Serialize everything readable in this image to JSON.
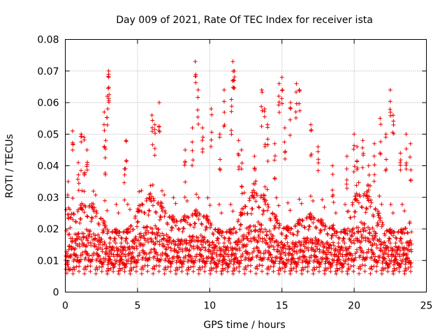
{
  "chart_data": {
    "type": "scatter",
    "title": "Day 009 of 2021, Rate Of TEC Index for receiver ista",
    "xlabel": "GPS time / hours",
    "ylabel": "ROTI / TECUs",
    "xlim": [
      0,
      25
    ],
    "ylim": [
      0,
      0.08
    ],
    "grid": true,
    "x_ticks": [
      0,
      5,
      10,
      15,
      20,
      25
    ],
    "x_tick_labels": [
      "0",
      "5",
      "10",
      "15",
      "20",
      "25"
    ],
    "y_ticks": [
      0,
      0.01,
      0.02,
      0.03,
      0.04,
      0.05,
      0.06,
      0.07,
      0.08
    ],
    "y_tick_labels": [
      "0",
      "0.01",
      "0.02",
      "0.03",
      "0.04",
      "0.05",
      "0.06",
      "0.07",
      "0.08"
    ],
    "marker": "+",
    "color": "#ee0000",
    "series": [
      {
        "name": "ROTI",
        "description": "dense scatter of ROTI values every sample, core band ~0.005-0.025 TECU/s over 0-24 h",
        "x": [
          0.2,
          0.5,
          0.9,
          1.1,
          1.3,
          1.5,
          2.7,
          2.9,
          3.0,
          3.0,
          2.8,
          4.2,
          4.1,
          6.0,
          6.2,
          6.5,
          8.3,
          8.8,
          9.0,
          9.2,
          9.5,
          10.1,
          10.7,
          11.0,
          11.6,
          11.7,
          11.5,
          12.0,
          12.2,
          13.1,
          13.6,
          13.8,
          14.0,
          14.5,
          14.8,
          15.0,
          15.2,
          15.6,
          16.0,
          16.2,
          17.0,
          17.5,
          18.5,
          19.5,
          20.0,
          20.2,
          20.6,
          21.0,
          21.4,
          21.8,
          22.2,
          22.5,
          22.7,
          23.2,
          23.6,
          23.9
        ],
        "y": [
          0.035,
          0.051,
          0.041,
          0.05,
          0.049,
          0.045,
          0.057,
          0.062,
          0.069,
          0.07,
          0.048,
          0.048,
          0.039,
          0.056,
          0.053,
          0.06,
          0.045,
          0.052,
          0.073,
          0.064,
          0.052,
          0.058,
          0.05,
          0.064,
          0.073,
          0.07,
          0.061,
          0.048,
          0.045,
          0.043,
          0.064,
          0.058,
          0.053,
          0.047,
          0.066,
          0.068,
          0.052,
          0.06,
          0.066,
          0.064,
          0.053,
          0.046,
          0.04,
          0.043,
          0.05,
          0.046,
          0.048,
          0.04,
          0.047,
          0.055,
          0.05,
          0.064,
          0.056,
          0.044,
          0.05,
          0.047
        ]
      }
    ]
  }
}
